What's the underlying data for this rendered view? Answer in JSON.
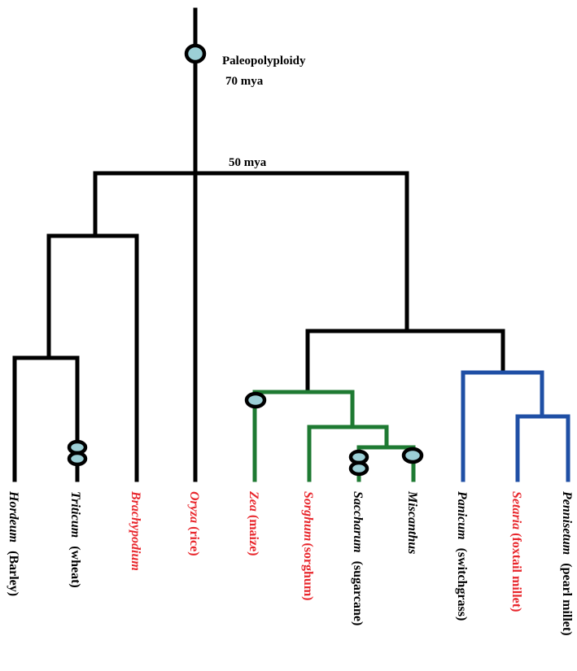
{
  "annotations": {
    "wgd_event": "Paleopolyploidy",
    "wgd_age": "70 mya",
    "split_age": "50 mya"
  },
  "colors": {
    "stem": "#000000",
    "andropogoneae": "#1e7a32",
    "paniceae": "#1f4fa5",
    "duplication_fill": "#9ccfd6",
    "sequenced_label": "#e8262c",
    "other_label": "#000000"
  },
  "legend_semantics": {
    "duplication_marker_icon": "oval-icon",
    "red_label_meaning": "",
    "black_label_meaning": ""
  },
  "taxa": [
    {
      "id": "hordeum",
      "genus": "Hordeum",
      "common": "(Barley)",
      "sequenced": false
    },
    {
      "id": "triticum",
      "genus": "Triticum",
      "common": "(wheat)",
      "sequenced": false
    },
    {
      "id": "brachypodium",
      "genus": "Brachypodium",
      "common": "",
      "sequenced": true
    },
    {
      "id": "oryza",
      "genus": "Oryza",
      "common": "(rice)",
      "sequenced": true
    },
    {
      "id": "zea",
      "genus": "Zea",
      "common": "(maize)",
      "sequenced": true
    },
    {
      "id": "sorghum",
      "genus": "Sorghum",
      "common": "(sorghum)",
      "sequenced": true
    },
    {
      "id": "saccharum",
      "genus": "Saccharum",
      "common": "(sugarcane)",
      "sequenced": false
    },
    {
      "id": "miscanthus",
      "genus": "Miscanthus",
      "common": "",
      "sequenced": false
    },
    {
      "id": "panicum",
      "genus": "Panicum",
      "common": "(switchgrass)",
      "sequenced": false
    },
    {
      "id": "setaria",
      "genus": "Setaria",
      "common": "(foxtail millet)",
      "sequenced": true
    },
    {
      "id": "pennisetum",
      "genus": "Pennisetum",
      "common": "(pearl millet)",
      "sequenced": false
    }
  ]
}
